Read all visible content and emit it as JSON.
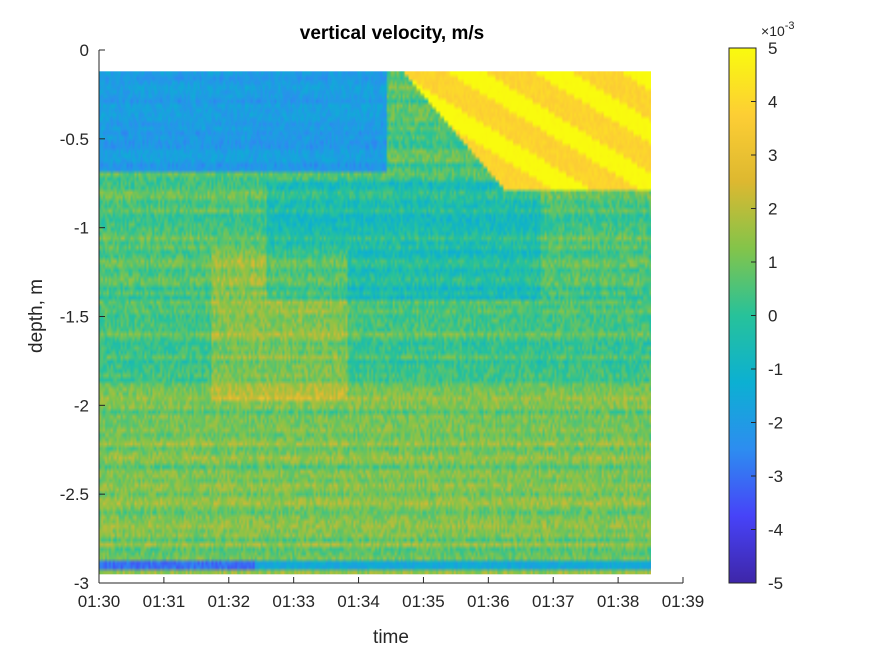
{
  "chart_data": {
    "type": "heatmap",
    "title": "vertical velocity, m/s",
    "xlabel": "time",
    "ylabel": "depth, m",
    "x_ticks": [
      "01:30",
      "01:31",
      "01:32",
      "01:33",
      "01:34",
      "01:35",
      "01:36",
      "01:37",
      "01:38",
      "01:39"
    ],
    "y_ticks": [
      0,
      -0.5,
      -1,
      -1.5,
      -2,
      -2.5,
      -3
    ],
    "xlim": [
      "01:30",
      "01:39"
    ],
    "ylim": [
      -3,
      0
    ],
    "data_extent": {
      "time_start": "01:30",
      "time_end": "01:38.5",
      "depth_top": -0.12,
      "depth_bottom": -2.95
    },
    "colormap": "parula",
    "colormap_stops": [
      "#3e26a8",
      "#4743f8",
      "#2d8df0",
      "#0cb0d2",
      "#27c29a",
      "#83c44a",
      "#ddb830",
      "#fdce34",
      "#f9fb0e"
    ],
    "colorbar": {
      "ticks": [
        5,
        4,
        3,
        2,
        1,
        0,
        -1,
        -2,
        -3,
        -4,
        -5
      ],
      "range": [
        -5,
        5
      ],
      "multiplier_base": "10",
      "multiplier_exp": "-3"
    },
    "description_features": {
      "background_value": 0.5,
      "near_surface_value": -2,
      "upper_right_wedge_value": 4.5,
      "bottom_band_value": -2
    }
  }
}
